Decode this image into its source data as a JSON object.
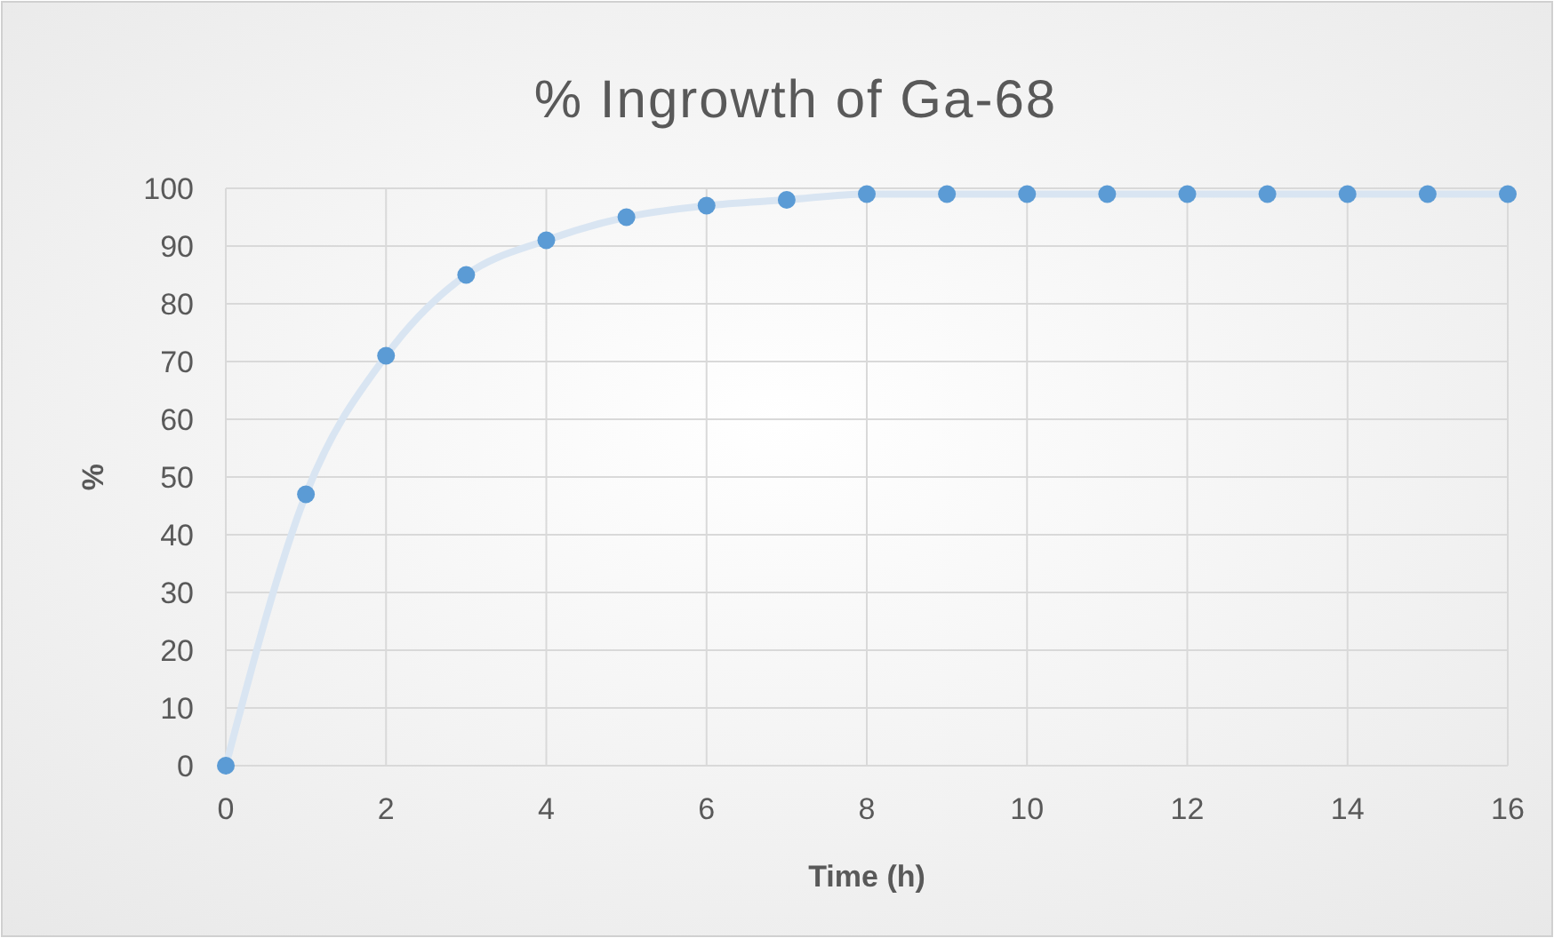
{
  "chart_data": {
    "type": "scatter",
    "title": "% Ingrowth of Ga-68",
    "xlabel": "Time (h)",
    "ylabel": "%",
    "x": [
      0,
      1,
      2,
      3,
      4,
      5,
      6,
      7,
      8,
      9,
      10,
      11,
      12,
      13,
      14,
      15,
      16
    ],
    "series": [
      {
        "type": "line",
        "color": "#d9e5f2",
        "marker": "none",
        "values": [
          0,
          47,
          71,
          85,
          91,
          95,
          97,
          98,
          99,
          99,
          99,
          99,
          99,
          99,
          99,
          99,
          99
        ]
      },
      {
        "color": "#5b9bd5",
        "marker": "circle",
        "values": [
          0,
          47,
          71,
          85,
          91,
          95,
          97,
          98,
          99,
          99,
          99,
          99,
          99,
          99,
          99,
          99,
          99
        ]
      }
    ],
    "xlim": [
      0,
      16
    ],
    "xticks": [
      0,
      2,
      4,
      6,
      8,
      10,
      12,
      14,
      16
    ],
    "ylim": [
      0,
      100
    ],
    "yticks": [
      0,
      10,
      20,
      30,
      40,
      50,
      60,
      70,
      80,
      90,
      100
    ],
    "grid": true
  }
}
